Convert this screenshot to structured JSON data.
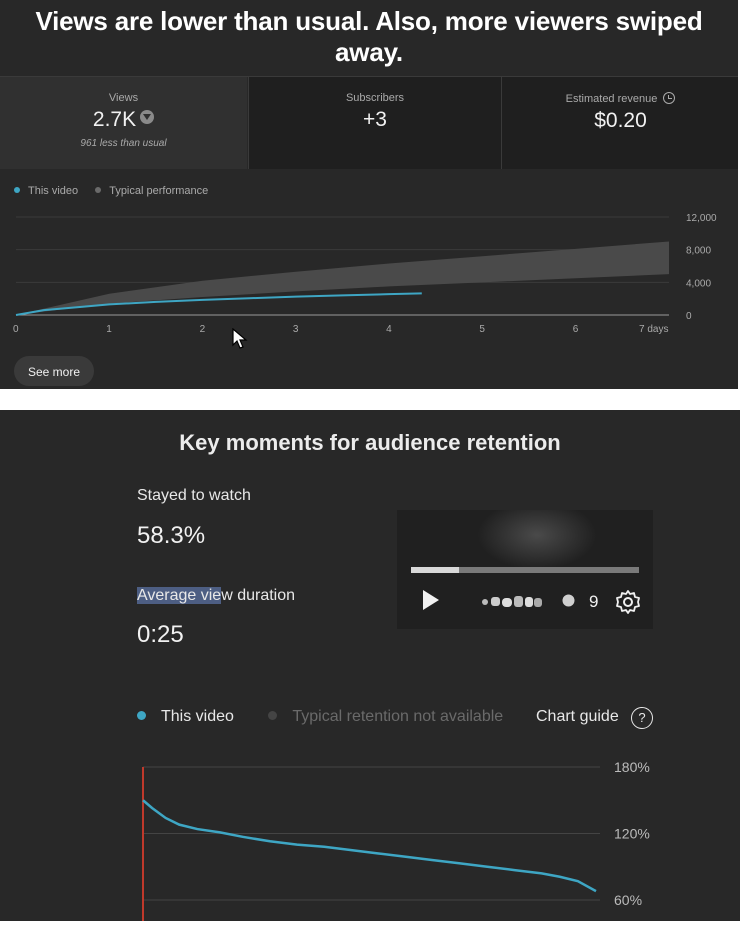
{
  "headline": "Views are lower than usual. Also, more viewers swiped away.",
  "metrics": {
    "views": {
      "label": "Views",
      "value": "2.7K",
      "sub": "961 less than usual"
    },
    "subscribers": {
      "label": "Subscribers",
      "value": "+3"
    },
    "revenue": {
      "label": "Estimated revenue",
      "value": "$0.20"
    }
  },
  "views_legend": {
    "this_video": "This video",
    "typical": "Typical performance"
  },
  "see_more": "See more",
  "retention": {
    "title": "Key moments for audience retention",
    "stayed_label": "Stayed to watch",
    "stayed_value": "58.3%",
    "avd_label_highlight": "Average vie",
    "avd_label_rest": "w duration",
    "avd_value": "0:25",
    "player_count": "9",
    "legend_this": "This video",
    "legend_typical": "Typical retention not available",
    "chart_guide": "Chart guide",
    "help_glyph": "?"
  },
  "colors": {
    "accent_line": "#3ea6c4",
    "typical_band": "#4a4a4a",
    "marker": "#c0392b"
  },
  "chart_data": [
    {
      "type": "line",
      "x_ticks": [
        "0",
        "1",
        "2",
        "3",
        "4",
        "5",
        "6",
        "7 days"
      ],
      "y_ticks": [
        "12,000",
        "8,000",
        "4,000",
        "0"
      ],
      "ylim": [
        0,
        12000
      ],
      "xlim": [
        0,
        7
      ],
      "series": [
        {
          "name": "This video",
          "x": [
            0,
            0.3,
            0.7,
            1,
            1.5,
            2,
            2.5,
            3,
            3.5,
            4,
            4.35
          ],
          "y": [
            0,
            600,
            1000,
            1300,
            1600,
            1850,
            2050,
            2250,
            2400,
            2550,
            2650
          ]
        },
        {
          "name": "Typical performance",
          "band": true,
          "x": [
            0,
            1,
            2,
            3,
            4,
            5,
            6,
            7
          ],
          "lower": [
            0,
            1400,
            2200,
            2900,
            3500,
            4000,
            4500,
            5000
          ],
          "upper": [
            0,
            2600,
            4200,
            5300,
            6300,
            7200,
            8100,
            9000
          ]
        }
      ]
    },
    {
      "type": "line",
      "y_ticks": [
        "180%",
        "120%",
        "60%"
      ],
      "ylim": [
        60,
        180
      ],
      "series": [
        {
          "name": "This video",
          "x": [
            0,
            0.02,
            0.05,
            0.08,
            0.12,
            0.17,
            0.22,
            0.28,
            0.34,
            0.4,
            0.46,
            0.52,
            0.58,
            0.64,
            0.7,
            0.76,
            0.82,
            0.88,
            0.92,
            0.96,
            1.0
          ],
          "y": [
            150,
            143,
            134,
            128,
            124,
            121,
            117,
            113,
            110,
            108,
            105,
            102,
            99,
            96,
            93,
            90,
            87,
            84,
            81,
            77,
            68
          ]
        }
      ]
    }
  ]
}
